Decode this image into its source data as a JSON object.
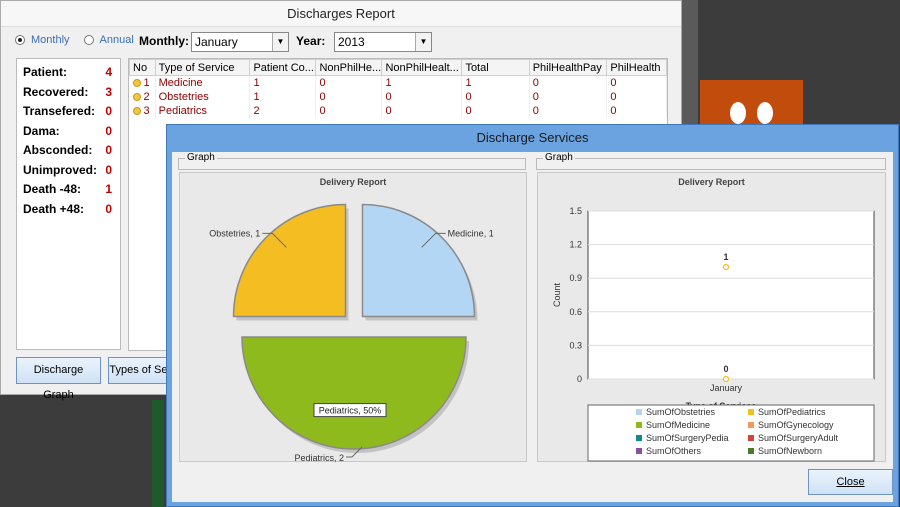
{
  "main_window": {
    "title": "Discharges Report",
    "radio_monthly": "Monthly",
    "radio_annual": "Annual",
    "monthly_label": "Monthly:",
    "monthly_value": "January",
    "year_label": "Year:",
    "year_value": "2013",
    "stats": [
      {
        "label": "Patient:",
        "value": "4"
      },
      {
        "label": "Recovered:",
        "value": "3"
      },
      {
        "label": "Transefered:",
        "value": "0"
      },
      {
        "label": "Dama:",
        "value": "0"
      },
      {
        "label": "Absconded:",
        "value": "0"
      },
      {
        "label": "Unimproved:",
        "value": "0"
      },
      {
        "label": "Death -48:",
        "value": "1"
      },
      {
        "label": "Death +48:",
        "value": "0"
      }
    ],
    "columns": [
      "No",
      "Type of Service",
      "Patient Co...",
      "NonPhilHe...",
      "NonPhilHealt...",
      "Total",
      "PhilHealthPay",
      "PhilHealth"
    ],
    "rows": [
      [
        "1",
        "Medicine",
        "1",
        "0",
        "1",
        "1",
        "0",
        "0"
      ],
      [
        "2",
        "Obstetries",
        "1",
        "0",
        "0",
        "0",
        "0",
        "0"
      ],
      [
        "3",
        "Pediatrics",
        "2",
        "0",
        "0",
        "0",
        "0",
        "0"
      ]
    ],
    "discharge_graph_btn": "Discharge Graph",
    "types_btn": "Types of Serv"
  },
  "services_window": {
    "title": "Discharge Services",
    "group_left": "Graph",
    "group_right": "Graph",
    "close_btn": "Close"
  },
  "chart_data": [
    {
      "type": "pie",
      "title": "Delivery Report",
      "slices": [
        {
          "label": "Medicine, 1",
          "value": 1,
          "color": "#b3d6f5"
        },
        {
          "label": "Pediatrics, 50%",
          "value": 2,
          "color": "#8fba1e"
        },
        {
          "label": "Obstetries, 1",
          "value": 1,
          "color": "#f4bd22"
        }
      ],
      "annotation": "Pediatrics, 2"
    },
    {
      "type": "scatter",
      "title": "Delivery Report",
      "xlabel": "Type of  Services",
      "ylabel": "Count",
      "categories": [
        "January"
      ],
      "ylim": [
        0,
        1.5
      ],
      "yticks": [
        "0",
        "0.3",
        "0.6",
        "0.9",
        "1.2",
        "1.5"
      ],
      "points": [
        {
          "category": "January",
          "y": 1,
          "label": "1",
          "color": "#f4bd22"
        },
        {
          "category": "January",
          "y": 0,
          "label": "0",
          "color": "#f4bd22"
        }
      ],
      "legend": [
        {
          "name": "SumOfObstetries",
          "color": "#b3d6f5"
        },
        {
          "name": "SumOfPediatrics",
          "color": "#f4bd22"
        },
        {
          "name": "SumOfMedicine",
          "color": "#8fba1e"
        },
        {
          "name": "SumOfGynecology",
          "color": "#f29a5c"
        },
        {
          "name": "SumOfSurgeryPedia",
          "color": "#108a8a"
        },
        {
          "name": "SumOfSurgeryAdult",
          "color": "#d0463a"
        },
        {
          "name": "SumOfOthers",
          "color": "#8a4fa0"
        },
        {
          "name": "SumOfNewborn",
          "color": "#4a7a2a"
        }
      ],
      "legend_position": "bottom"
    }
  ]
}
